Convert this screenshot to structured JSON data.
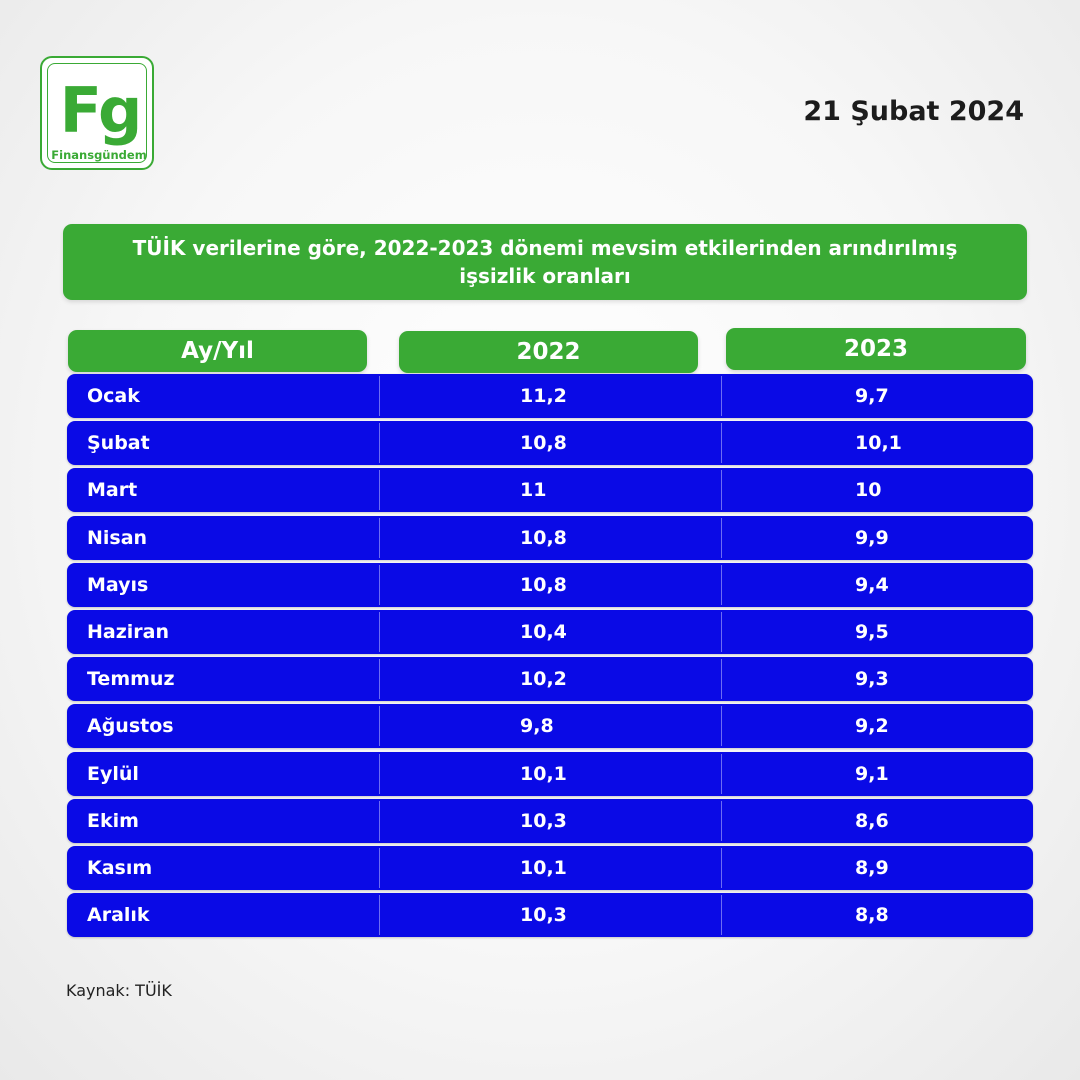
{
  "logo": {
    "monogram": "Fg",
    "brand": "Finansgündem"
  },
  "date": "21 Şubat 2024",
  "title": "TÜİK verilerine göre, 2022-2023 dönemi mevsim etkilerinden arındırılmış işsizlik oranları",
  "source": "Kaynak: TÜİK",
  "colors": {
    "green": "#3aaa35",
    "blue": "#0a0ae6",
    "white": "#ffffff"
  },
  "chart_data": {
    "type": "table",
    "title": "TÜİK verilerine göre, 2022-2023 dönemi mevsim etkilerinden arındırılmış işsizlik oranları",
    "columns": [
      "Ay/Yıl",
      "2022",
      "2023"
    ],
    "rows": [
      {
        "month": "Ocak",
        "v2022": "11,2",
        "v2023": "9,7"
      },
      {
        "month": "Şubat",
        "v2022": "10,8",
        "v2023": "10,1"
      },
      {
        "month": "Mart",
        "v2022": "11",
        "v2023": "10"
      },
      {
        "month": "Nisan",
        "v2022": "10,8",
        "v2023": "9,9"
      },
      {
        "month": "Mayıs",
        "v2022": "10,8",
        "v2023": "9,4"
      },
      {
        "month": "Haziran",
        "v2022": "10,4",
        "v2023": "9,5"
      },
      {
        "month": "Temmuz",
        "v2022": "10,2",
        "v2023": "9,3"
      },
      {
        "month": "Ağustos",
        "v2022": "9,8",
        "v2023": "9,2"
      },
      {
        "month": "Eylül",
        "v2022": "10,1",
        "v2023": "9,1"
      },
      {
        "month": "Ekim",
        "v2022": "10,3",
        "v2023": "8,6"
      },
      {
        "month": "Kasım",
        "v2022": "10,1",
        "v2023": "8,9"
      },
      {
        "month": "Aralık",
        "v2022": "10,3",
        "v2023": "8,8"
      }
    ]
  }
}
